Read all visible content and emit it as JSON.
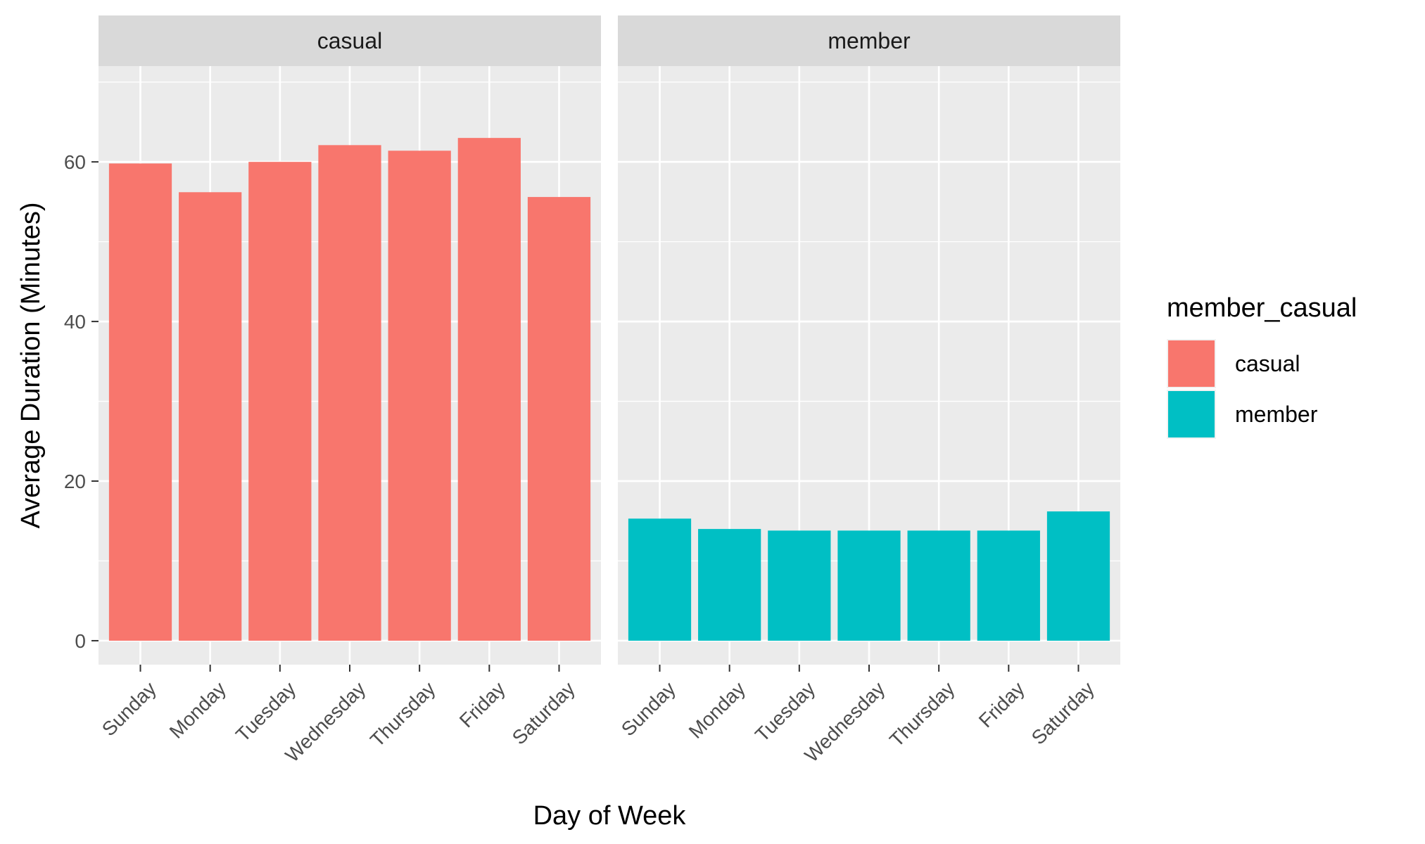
{
  "chart_data": {
    "type": "bar",
    "facet_variable": "member_casual",
    "categories": [
      "Sunday",
      "Monday",
      "Tuesday",
      "Wednesday",
      "Thursday",
      "Friday",
      "Saturday"
    ],
    "panels": [
      {
        "strip_label": "casual",
        "series_name": "casual",
        "color": "#F8766D",
        "values": [
          59.8,
          56.2,
          60.0,
          62.1,
          61.4,
          63.0,
          55.6
        ]
      },
      {
        "strip_label": "member",
        "series_name": "member",
        "color": "#00BFC4",
        "values": [
          15.3,
          14.0,
          13.8,
          13.8,
          13.8,
          13.8,
          16.2
        ]
      }
    ],
    "xlabel": "Day of Week",
    "ylabel": "Average Duration (Minutes)",
    "ylim": [
      -3,
      72
    ],
    "yticks": [
      0,
      20,
      40,
      60
    ],
    "y_minor_ticks": [
      10,
      30,
      50,
      70
    ],
    "grid": true,
    "x_tick_rotation_deg": 45,
    "legend": {
      "title": "member_casual",
      "placement": "right",
      "entries": [
        {
          "label": "casual",
          "color": "#F8766D"
        },
        {
          "label": "member",
          "color": "#00BFC4"
        }
      ]
    }
  }
}
